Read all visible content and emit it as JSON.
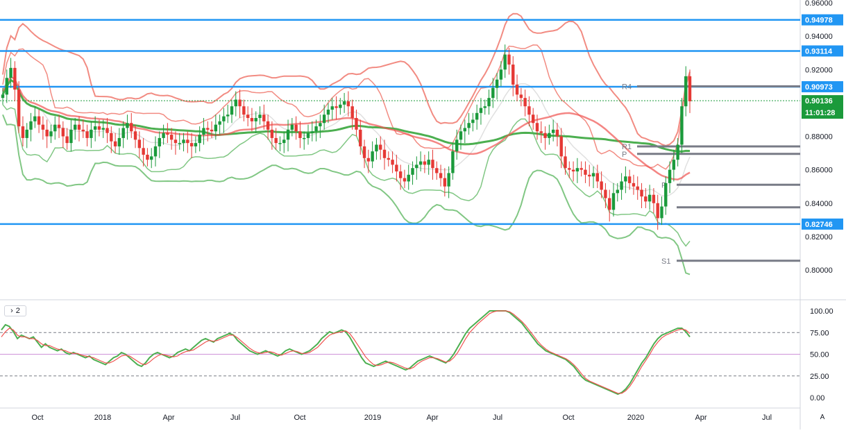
{
  "chart_data": [
    {
      "type": "candlestick",
      "title": "",
      "timeframe": "weekly",
      "x_start": "2017-07",
      "x_end": "2020-03",
      "ylim": [
        0.78,
        0.96
      ],
      "y_ticks": [
        "0.96000",
        "0.94000",
        "0.92000",
        "0.90000",
        "0.88000",
        "0.86000",
        "0.84000",
        "0.82000",
        "0.80000"
      ],
      "x_ticks": [
        "Oct",
        "2018",
        "Apr",
        "Jul",
        "Oct",
        "2019",
        "Apr",
        "Jul",
        "Oct",
        "2020",
        "Apr",
        "Jul"
      ],
      "horizontal_levels": [
        {
          "value": 0.94978,
          "label": "0.94978",
          "color": "#2196f3"
        },
        {
          "value": 0.93114,
          "label": "0.93114",
          "color": "#2196f3"
        },
        {
          "value": 0.90973,
          "label": "0.90973",
          "color": "#2196f3"
        },
        {
          "value": 0.82746,
          "label": "0.82746",
          "color": "#2196f3"
        }
      ],
      "last_price": {
        "value": 0.90136,
        "label": "0.90136",
        "countdown": "11:01:28",
        "color": "#1b9a3b"
      },
      "pivots": [
        {
          "name": "R4",
          "value": 0.91
        },
        {
          "name": "R1",
          "value": 0.874
        },
        {
          "name": "P",
          "value": 0.8695
        },
        {
          "name": "P",
          "value": 0.851
        },
        {
          "name": "",
          "value": 0.8375
        },
        {
          "name": "S1",
          "value": 0.8055
        }
      ],
      "close_series": [
        0.905,
        0.915,
        0.921,
        0.908,
        0.886,
        0.879,
        0.884,
        0.889,
        0.892,
        0.887,
        0.884,
        0.88,
        0.883,
        0.887,
        0.885,
        0.88,
        0.876,
        0.884,
        0.887,
        0.884,
        0.883,
        0.879,
        0.884,
        0.886,
        0.884,
        0.885,
        0.882,
        0.877,
        0.874,
        0.879,
        0.885,
        0.888,
        0.883,
        0.878,
        0.873,
        0.869,
        0.866,
        0.868,
        0.874,
        0.879,
        0.882,
        0.881,
        0.878,
        0.876,
        0.876,
        0.878,
        0.876,
        0.874,
        0.876,
        0.881,
        0.885,
        0.884,
        0.883,
        0.887,
        0.889,
        0.892,
        0.893,
        0.898,
        0.902,
        0.898,
        0.893,
        0.891,
        0.889,
        0.891,
        0.893,
        0.889,
        0.884,
        0.879,
        0.876,
        0.876,
        0.878,
        0.884,
        0.887,
        0.883,
        0.879,
        0.879,
        0.882,
        0.883,
        0.886,
        0.888,
        0.893,
        0.896,
        0.898,
        0.897,
        0.899,
        0.901,
        0.898,
        0.891,
        0.884,
        0.874,
        0.867,
        0.865,
        0.871,
        0.875,
        0.872,
        0.867,
        0.866,
        0.863,
        0.859,
        0.855,
        0.853,
        0.857,
        0.861,
        0.863,
        0.865,
        0.863,
        0.866,
        0.861,
        0.858,
        0.855,
        0.85,
        0.858,
        0.871,
        0.878,
        0.883,
        0.885,
        0.888,
        0.89,
        0.894,
        0.897,
        0.898,
        0.903,
        0.909,
        0.914,
        0.92,
        0.929,
        0.923,
        0.911,
        0.905,
        0.903,
        0.898,
        0.893,
        0.888,
        0.883,
        0.882,
        0.879,
        0.882,
        0.884,
        0.88,
        0.868,
        0.861,
        0.86,
        0.859,
        0.861,
        0.86,
        0.857,
        0.856,
        0.858,
        0.853,
        0.848,
        0.843,
        0.836,
        0.846,
        0.848,
        0.853,
        0.856,
        0.852,
        0.85,
        0.848,
        0.844,
        0.841,
        0.845,
        0.84,
        0.831,
        0.838,
        0.852,
        0.86,
        0.866,
        0.875,
        0.898,
        0.916,
        0.901
      ],
      "indicators": [
        "SMA (green, thick)",
        "SMA (red)",
        "SMA (grey)",
        "Bollinger bands (red)",
        "Bollinger bands (green)"
      ]
    },
    {
      "type": "line",
      "title": "",
      "pane_label": "2",
      "ylim": [
        0,
        100
      ],
      "y_ticks": [
        "100.00",
        "75.00",
        "50.00",
        "25.00",
        "0.00"
      ],
      "levels": [
        75,
        50,
        25
      ],
      "series": [
        {
          "color": "#4caf50",
          "values": [
            78,
            84,
            82,
            76,
            68,
            72,
            70,
            68,
            70,
            64,
            58,
            62,
            58,
            56,
            54,
            56,
            52,
            50,
            52,
            50,
            48,
            46,
            48,
            44,
            42,
            40,
            38,
            42,
            46,
            48,
            52,
            50,
            46,
            42,
            38,
            36,
            40,
            46,
            50,
            52,
            50,
            48,
            46,
            48,
            52,
            54,
            56,
            54,
            58,
            62,
            66,
            68,
            66,
            64,
            68,
            70,
            72,
            74,
            72,
            66,
            62,
            58,
            54,
            52,
            50,
            52,
            54,
            52,
            50,
            48,
            50,
            54,
            56,
            54,
            52,
            50,
            52,
            54,
            58,
            62,
            68,
            72,
            76,
            74,
            76,
            78,
            76,
            70,
            62,
            54,
            46,
            40,
            38,
            36,
            38,
            40,
            42,
            40,
            38,
            36,
            34,
            32,
            34,
            38,
            42,
            44,
            46,
            48,
            46,
            44,
            42,
            40,
            44,
            50,
            58,
            66,
            74,
            80,
            84,
            88,
            92,
            96,
            100,
            100,
            100,
            100,
            100,
            98,
            94,
            90,
            86,
            80,
            74,
            68,
            62,
            58,
            54,
            52,
            50,
            48,
            46,
            44,
            40,
            36,
            30,
            24,
            20,
            18,
            16,
            14,
            12,
            10,
            8,
            6,
            4,
            6,
            10,
            16,
            24,
            32,
            40,
            46,
            54,
            62,
            68,
            72,
            74,
            76,
            78,
            80,
            80,
            76,
            70
          ]
        },
        {
          "color": "#ef5350",
          "values": [
            70,
            76,
            80,
            78,
            72,
            70,
            70,
            68,
            68,
            66,
            62,
            60,
            60,
            58,
            56,
            55,
            54,
            52,
            51,
            51,
            49,
            48,
            47,
            46,
            44,
            42,
            40,
            40,
            42,
            45,
            48,
            49,
            48,
            45,
            42,
            39,
            38,
            41,
            45,
            48,
            50,
            49,
            48,
            47,
            48,
            51,
            53,
            54,
            55,
            58,
            61,
            64,
            66,
            65,
            66,
            68,
            70,
            72,
            72,
            69,
            65,
            61,
            57,
            54,
            52,
            51,
            52,
            53,
            52,
            50,
            49,
            51,
            53,
            54,
            53,
            51,
            51,
            52,
            55,
            58,
            63,
            68,
            72,
            74,
            75,
            76,
            77,
            74,
            68,
            61,
            54,
            47,
            42,
            38,
            37,
            38,
            40,
            41,
            40,
            38,
            36,
            34,
            33,
            35,
            39,
            42,
            44,
            46,
            46,
            45,
            43,
            41,
            42,
            46,
            52,
            60,
            68,
            75,
            80,
            85,
            89,
            93,
            97,
            99,
            100,
            100,
            100,
            99,
            96,
            92,
            88,
            83,
            77,
            71,
            65,
            60,
            56,
            53,
            51,
            49,
            47,
            45,
            42,
            38,
            33,
            27,
            22,
            19,
            17,
            15,
            13,
            11,
            9,
            7,
            5,
            5,
            8,
            13,
            20,
            28,
            36,
            43,
            50,
            58,
            64,
            69,
            72,
            74,
            76,
            78,
            79,
            78,
            74
          ]
        }
      ]
    }
  ],
  "ui": {
    "pane_toggle_label": "2",
    "pane_toggle_icon": "chevron-right-icon",
    "auto_scale_label": "A"
  }
}
